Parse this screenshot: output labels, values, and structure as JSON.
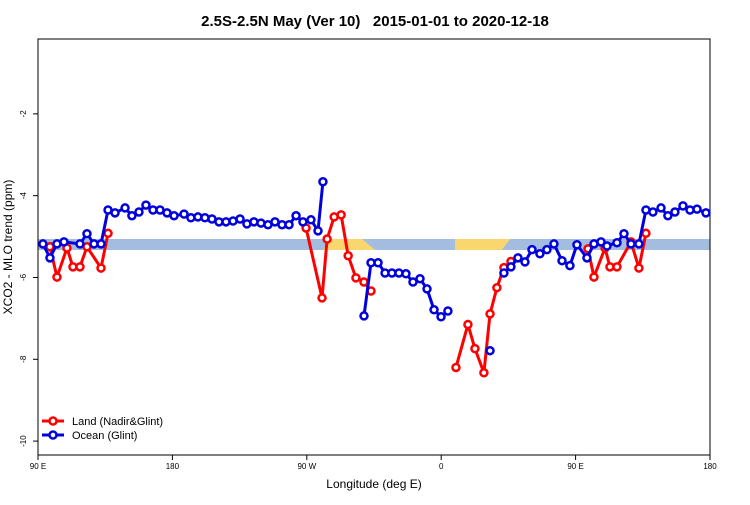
{
  "chart_data": {
    "type": "line",
    "title": "2.5S-2.5N May (Ver 10)   2015-01-01 to 2020-12-18",
    "x_label": "Longitude (deg E)",
    "y_label": "XCO2 - MLO trend (ppm)",
    "xlim": [
      90,
      540
    ],
    "ylim": [
      -10.34,
      -0.17
    ],
    "xticks": [
      {
        "value": 90,
        "label": "90 E"
      },
      {
        "value": 180,
        "label": "180"
      },
      {
        "value": 270,
        "label": "90 W"
      },
      {
        "value": 360,
        "label": "0"
      },
      {
        "value": 450,
        "label": "90 E"
      },
      {
        "value": 540,
        "label": "180"
      }
    ],
    "yticks": [
      -10,
      -8,
      -6,
      -4,
      -2
    ],
    "legend": "bottom-left",
    "series": [
      {
        "name": "Land (Nadir&Glint)",
        "color": "#ff0000",
        "x": [
          98.0,
          102.7,
          109.4,
          113.4,
          118.1,
          122.8,
          132.2,
          136.9,
          null,
          269.5,
          280.2,
          283.6,
          288.3,
          293.0,
          297.7,
          302.9,
          308.3,
          313.0,
          null,
          369.9,
          377.9,
          382.6,
          388.6,
          392.7,
          397.3,
          402.0,
          406.7,
          null,
          458.3,
          462.3,
          469.7,
          473.0,
          477.7,
          487.1,
          492.4,
          497.1
        ],
        "values": [
          -5.25,
          -5.99,
          -5.28,
          -5.74,
          -5.74,
          -5.25,
          -5.77,
          -4.92,
          null,
          -4.79,
          -6.5,
          -5.06,
          -4.52,
          -4.47,
          -5.47,
          -6.01,
          -6.11,
          -6.33,
          null,
          -8.2,
          -7.15,
          -7.74,
          -8.33,
          -6.89,
          -6.25,
          -5.76,
          -5.61,
          null,
          -5.3,
          -5.99,
          -5.28,
          -5.74,
          -5.74,
          -5.13,
          -5.77,
          -4.92
        ]
      },
      {
        "name": "Ocean (Glint)",
        "color": "#0000dd",
        "x": [
          93.3,
          98.0,
          102.7,
          107.4,
          118.1,
          122.8,
          127.5,
          132.2,
          136.9,
          141.6,
          148.3,
          152.9,
          157.6,
          162.3,
          167.0,
          171.7,
          176.4,
          181.1,
          187.8,
          192.4,
          197.1,
          201.8,
          206.5,
          211.2,
          215.9,
          220.6,
          225.3,
          229.9,
          234.6,
          239.3,
          244.0,
          248.7,
          253.4,
          258.1,
          262.8,
          267.4,
          272.8,
          277.5,
          280.8,
          null,
          308.3,
          313.0,
          317.7,
          322.4,
          327.0,
          331.7,
          336.4,
          341.1,
          345.8,
          350.5,
          355.2,
          359.9,
          364.5,
          null,
          392.7,
          null,
          402.0,
          406.7,
          411.4,
          416.1,
          420.8,
          426.1,
          430.8,
          435.5,
          440.9,
          446.2,
          450.9,
          457.6,
          462.3,
          467.0,
          471.0,
          477.7,
          482.4,
          487.1,
          492.4,
          497.1,
          501.8,
          507.2,
          511.8,
          516.5,
          521.9,
          526.6,
          531.3,
          537.3
        ],
        "values": [
          -5.18,
          -5.52,
          -5.18,
          -5.13,
          -5.18,
          -4.93,
          -5.18,
          -5.18,
          -4.35,
          -4.42,
          -4.3,
          -4.49,
          -4.4,
          -4.23,
          -4.35,
          -4.35,
          -4.42,
          -4.49,
          -4.45,
          -4.54,
          -4.52,
          -4.54,
          -4.57,
          -4.64,
          -4.64,
          -4.62,
          -4.57,
          -4.69,
          -4.64,
          -4.67,
          -4.71,
          -4.64,
          -4.71,
          -4.71,
          -4.49,
          -4.64,
          -4.59,
          -4.86,
          -3.66,
          null,
          -6.94,
          -5.64,
          -5.64,
          -5.89,
          -5.89,
          -5.89,
          -5.91,
          -6.11,
          -6.03,
          -6.28,
          -6.79,
          -6.96,
          -6.82,
          null,
          -7.79,
          null,
          -5.89,
          -5.74,
          -5.52,
          -5.62,
          -5.32,
          -5.42,
          -5.32,
          -5.18,
          -5.59,
          -5.71,
          -5.2,
          -5.52,
          -5.18,
          -5.13,
          -5.23,
          -5.15,
          -4.93,
          -5.18,
          -5.18,
          -4.35,
          -4.4,
          -4.3,
          -4.49,
          -4.4,
          -4.25,
          -4.35,
          -4.33,
          -4.42
        ]
      }
    ]
  }
}
